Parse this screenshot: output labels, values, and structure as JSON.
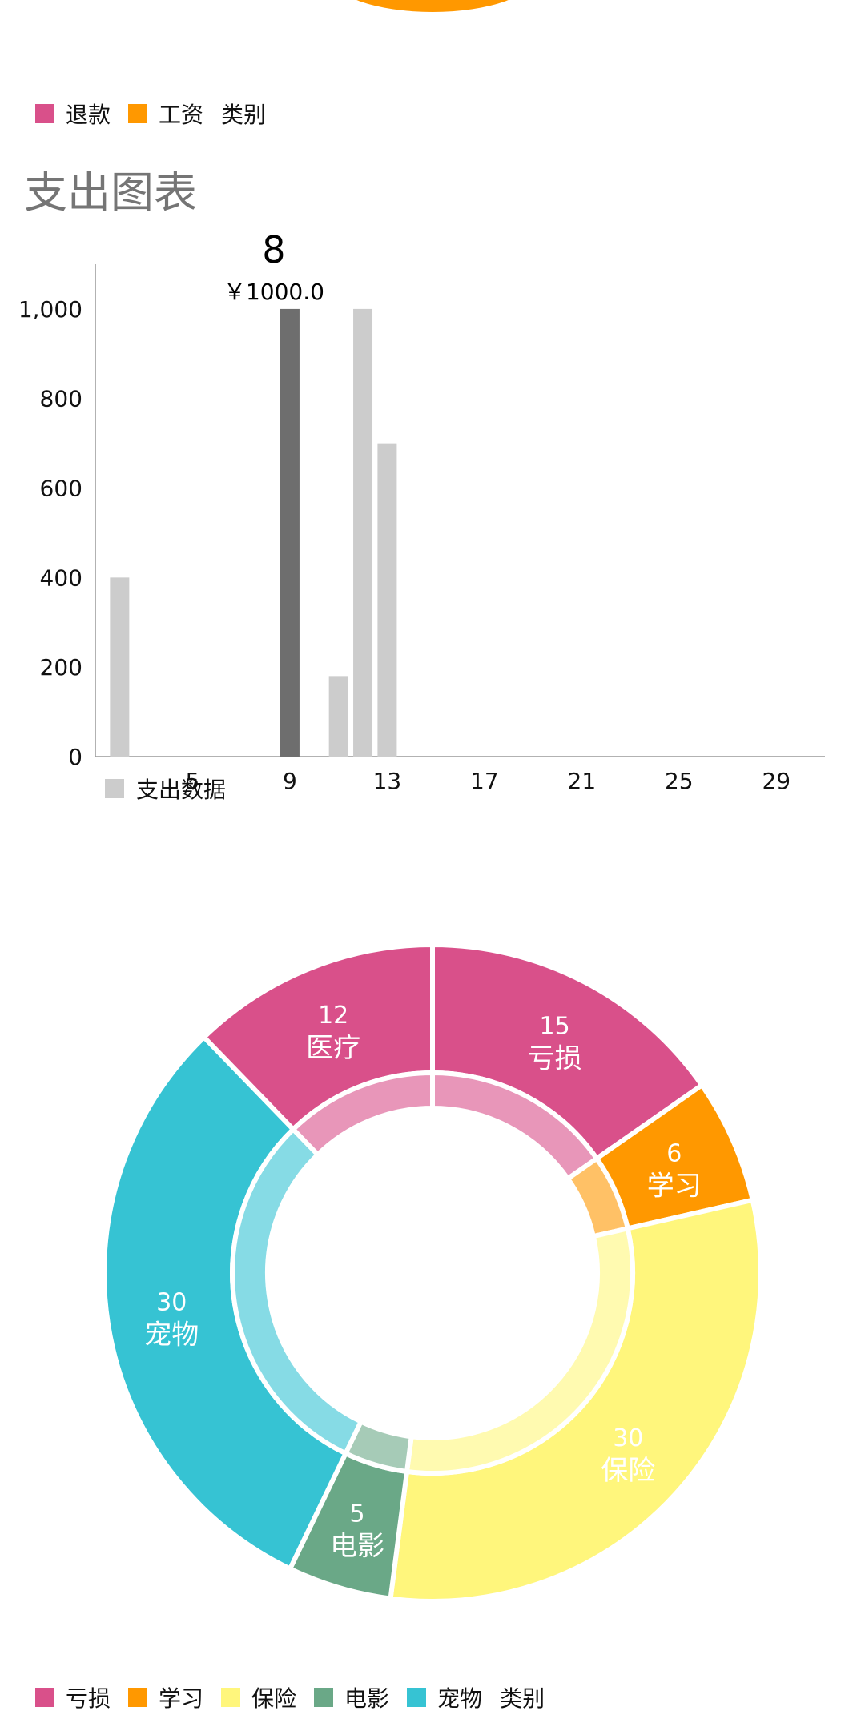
{
  "top_legend": {
    "items": [
      {
        "label": "退款",
        "color": "#D9508A"
      },
      {
        "label": "工资",
        "color": "#FF9800"
      }
    ],
    "suffix": "类别"
  },
  "bar_section": {
    "title": "支出图表"
  },
  "chart_data": [
    {
      "type": "bar",
      "series": [
        {
          "name": "支出数据",
          "color": "#CCCCCC",
          "highlight_color": "#6E6E6E"
        }
      ],
      "x": [
        2,
        9,
        11,
        12,
        13
      ],
      "values": [
        400,
        1000,
        180,
        1000,
        700
      ],
      "xticks": [
        5,
        9,
        13,
        17,
        21,
        25,
        29
      ],
      "xlim": [
        1,
        31
      ],
      "ylim": [
        0,
        1100
      ],
      "yticks": [
        0,
        200,
        400,
        600,
        800,
        1000
      ],
      "ytick_labels": [
        "0",
        "200",
        "400",
        "600",
        "800",
        "1,000"
      ],
      "highlight": {
        "x": 9,
        "label": "8",
        "value_label": "￥1000.0"
      },
      "legend": "支出数据"
    },
    {
      "type": "pie",
      "style": "donut",
      "slices": [
        {
          "label": "亏损",
          "value": 15,
          "color": "#D9508A"
        },
        {
          "label": "学习",
          "value": 6,
          "color": "#FF9800"
        },
        {
          "label": "保险",
          "value": 30,
          "color": "#FFF67C"
        },
        {
          "label": "电影",
          "value": 5,
          "color": "#6AA887"
        },
        {
          "label": "宠物",
          "value": 30,
          "color": "#36C3D3"
        },
        {
          "label": "医疗",
          "value": 12,
          "color": "#D9508A"
        }
      ],
      "legend": {
        "items": [
          {
            "label": "亏损",
            "color": "#D9508A"
          },
          {
            "label": "学习",
            "color": "#FF9800"
          },
          {
            "label": "保险",
            "color": "#FFF67C"
          },
          {
            "label": "电影",
            "color": "#6AA887"
          },
          {
            "label": "宠物",
            "color": "#36C3D3"
          }
        ],
        "suffix": "类别"
      }
    }
  ]
}
